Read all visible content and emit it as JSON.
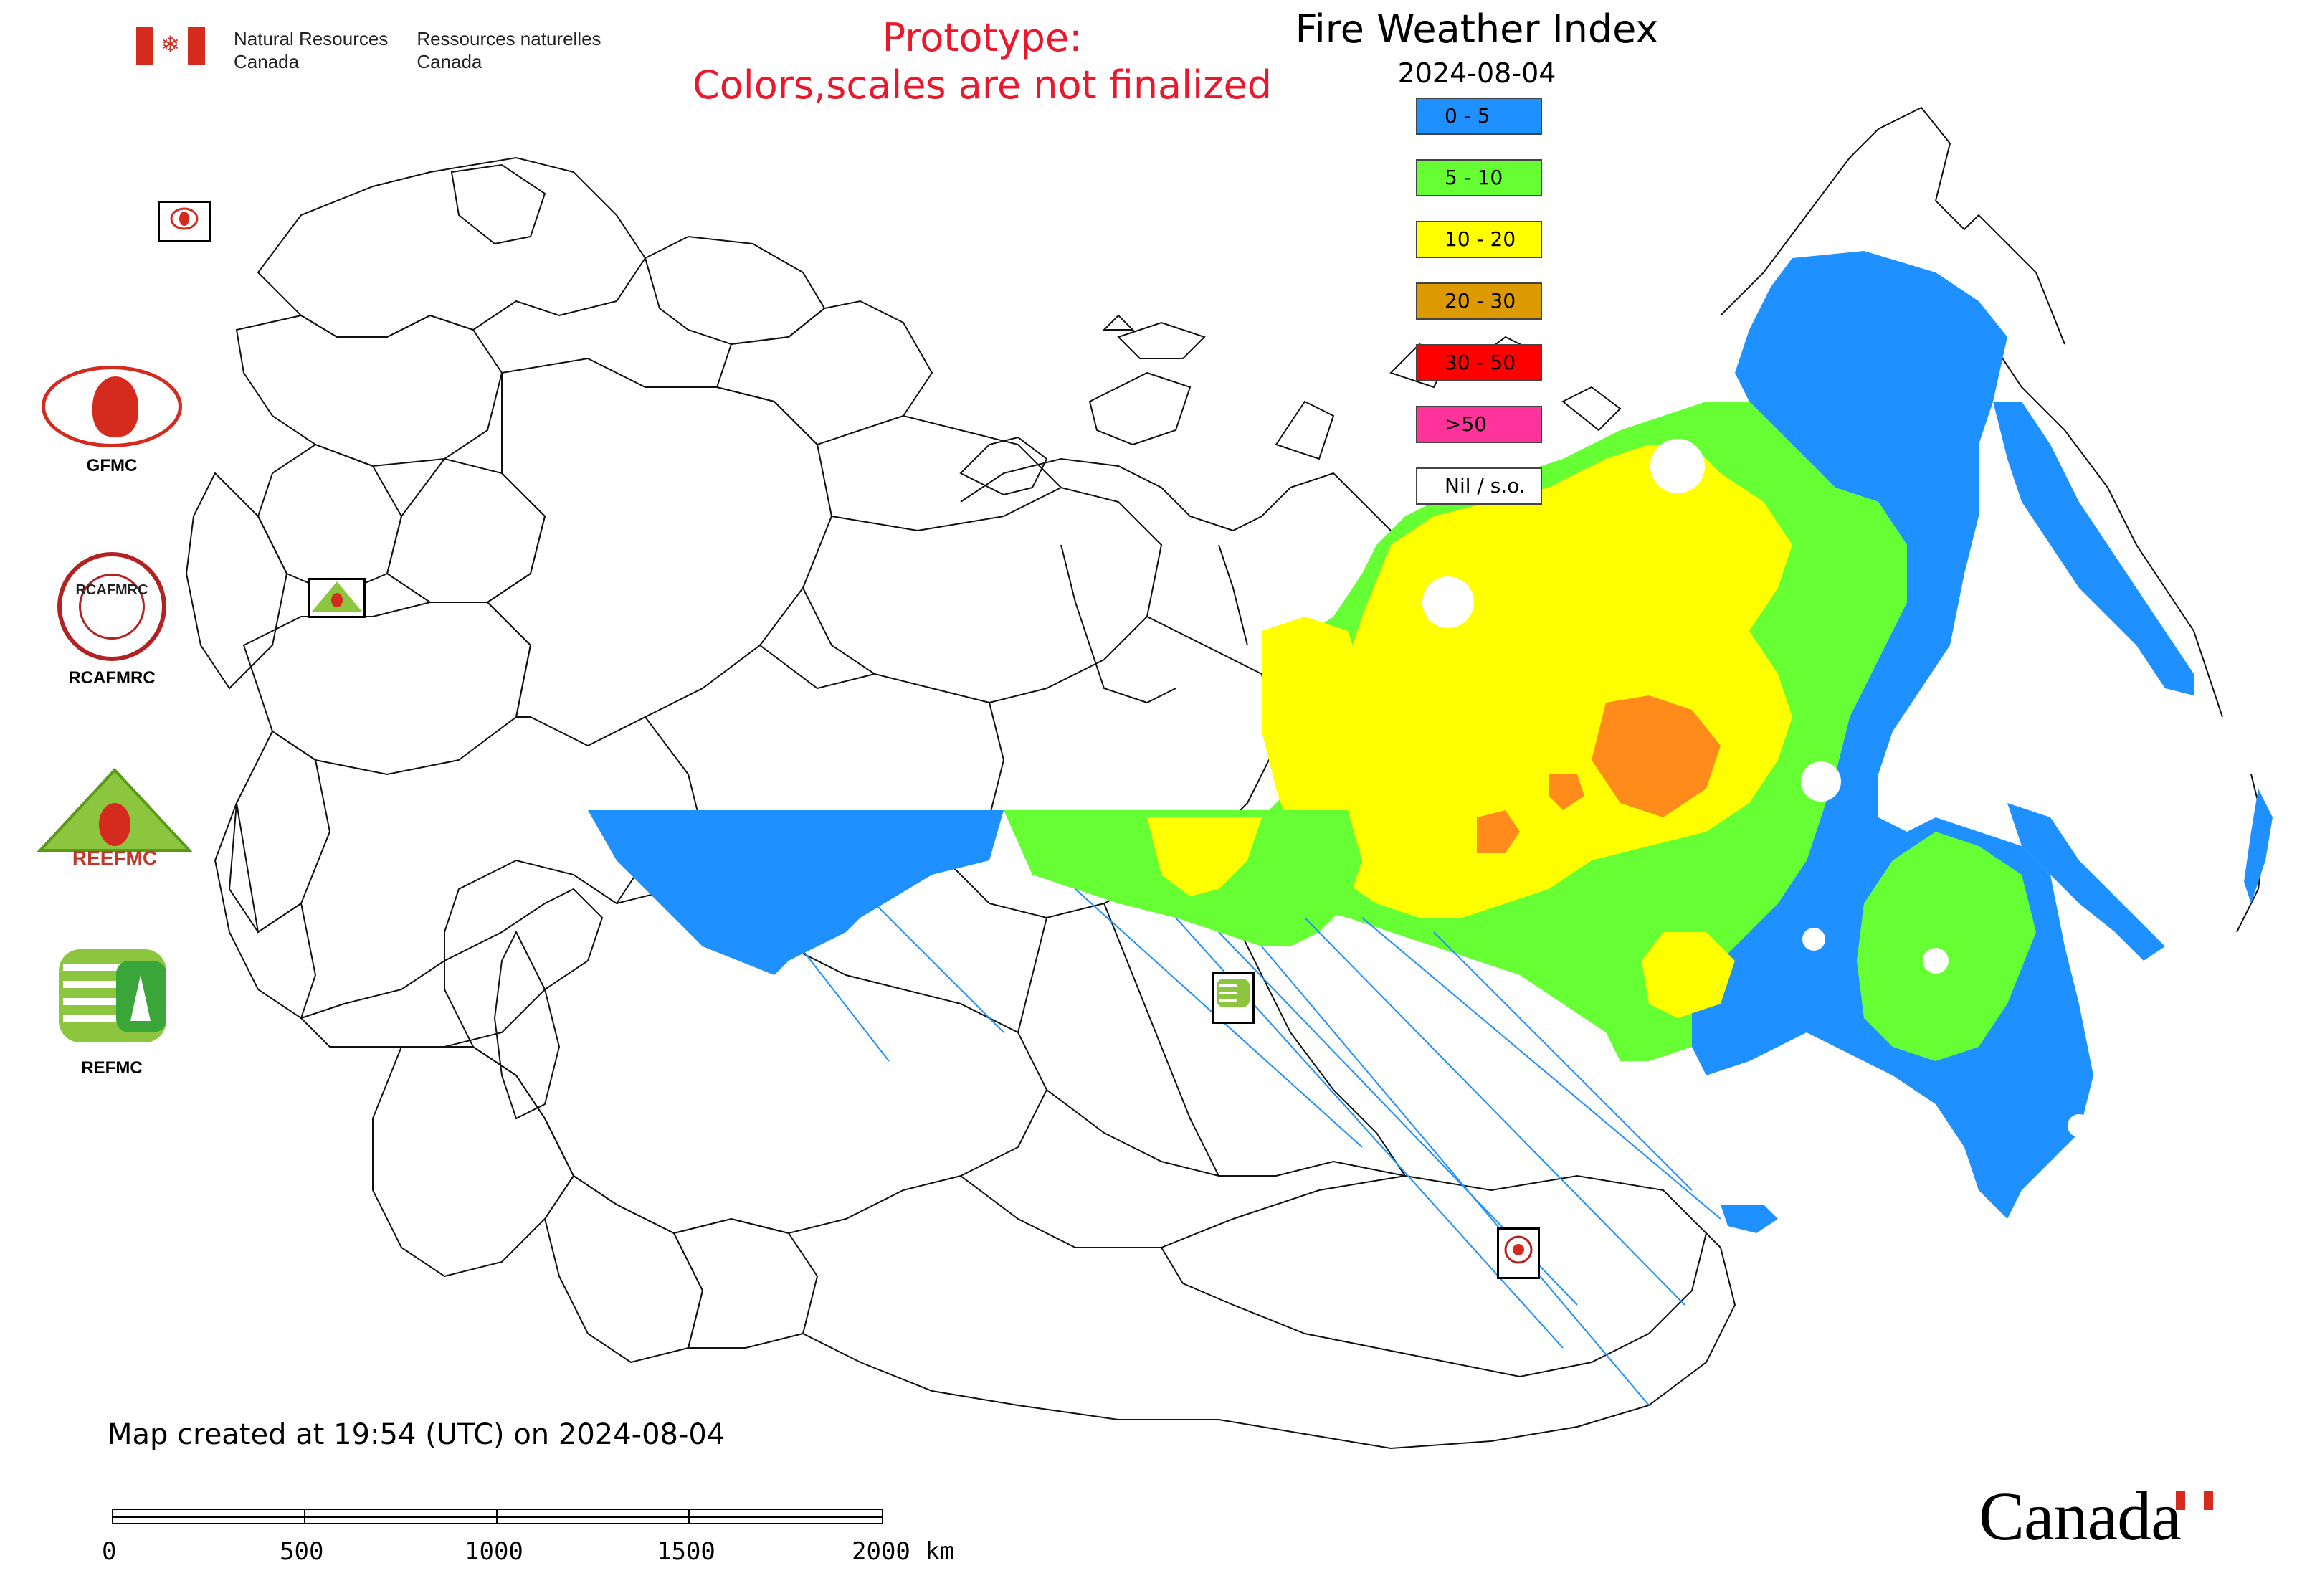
{
  "header": {
    "department_en_line1": "Natural Resources",
    "department_en_line2": "Canada",
    "department_fr_line1": "Ressources naturelles",
    "department_fr_line2": "Canada",
    "prototype_line1": "Prototype:",
    "prototype_line2": "Colors,scales are not finalized"
  },
  "map_title": "Fire Weather Index",
  "map_date": "2024-08-04",
  "legend": [
    {
      "label": "0 - 5",
      "color": "#1e90ff"
    },
    {
      "label": "5 - 10",
      "color": "#66ff33"
    },
    {
      "label": "10 - 20",
      "color": "#ffff00"
    },
    {
      "label": "20 - 30",
      "color": "#dd9900"
    },
    {
      "label": "30 - 50",
      "color": "#ff0000"
    },
    {
      "label": ">50",
      "color": "#ff3399"
    },
    {
      "label": "Nil / s.o.",
      "color": "#ffffff"
    }
  ],
  "logos": {
    "gfmc": "GFMC",
    "rcafmrc": "RCAFMRC",
    "reefmc": "REEFMC",
    "refmc": "REFMC",
    "rcafmrc_ring": "RCAFMRC",
    "reefmc_wordmark": "REEFMC"
  },
  "footer": {
    "map_created": "Map created at 19:54 (UTC) on 2024-08-04",
    "scale_labels": [
      "0",
      "500",
      "1000",
      "1500",
      "2000 km"
    ],
    "wordmark": "Canada"
  },
  "colors": {
    "blue": "#1e90ff",
    "green": "#66ff33",
    "yellow": "#ffff00",
    "orange": "#ff8c1a",
    "red_text": "#e8192c",
    "canada_red": "#d52b1e"
  }
}
